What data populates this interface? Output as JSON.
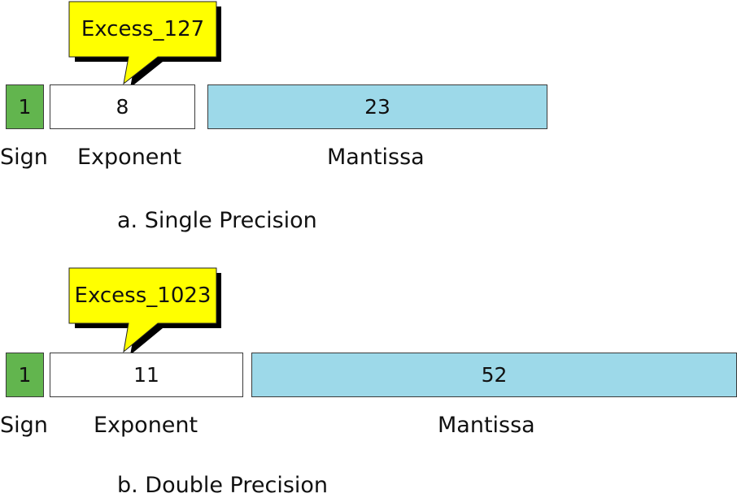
{
  "single": {
    "callout": "Excess_127",
    "sign_bits": "1",
    "exponent_bits": "8",
    "mantissa_bits": "23",
    "sign_label": "Sign",
    "exponent_label": "Exponent",
    "mantissa_label": "Mantissa",
    "caption": "a. Single Precision"
  },
  "double": {
    "callout": "Excess_1023",
    "sign_bits": "1",
    "exponent_bits": "11",
    "mantissa_bits": "52",
    "sign_label": "Sign",
    "exponent_label": "Exponent",
    "mantissa_label": "Mantissa",
    "caption": "b. Double Precision"
  },
  "colors": {
    "sign": "#62b54e",
    "exponent": "#ffffff",
    "mantissa": "#9dd9e9",
    "callout_fill": "#ffff00",
    "callout_shadow": "#000000"
  }
}
